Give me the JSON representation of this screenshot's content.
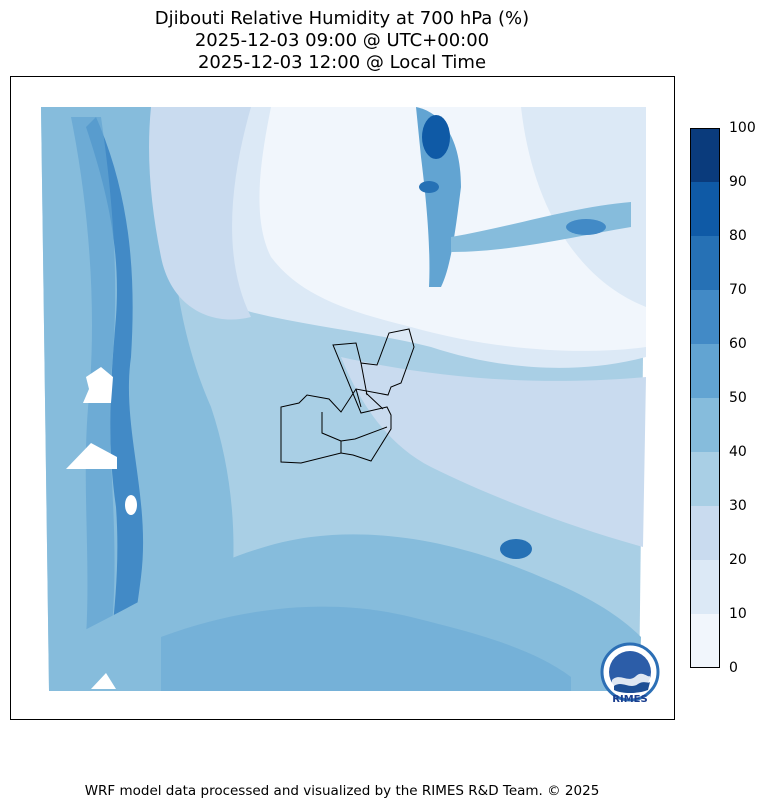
{
  "header": {
    "title_line1": "Djibouti Relative Humidity at 700 hPa (%)",
    "title_line2": "2025-12-03 09:00 @ UTC+00:00",
    "title_line3": "2025-12-03 12:00 @ Local Time"
  },
  "colorbar": {
    "ticks": [
      "0",
      "10",
      "20",
      "30",
      "40",
      "50",
      "60",
      "70",
      "80",
      "90",
      "100"
    ],
    "colors": [
      "#f1f6fc",
      "#dce9f6",
      "#c9dbef",
      "#a9cfe5",
      "#86bcdc",
      "#62a4d2",
      "#428ac6",
      "#2671b5",
      "#0f5aa6",
      "#0a3b7c"
    ]
  },
  "logo": {
    "text": "RIMES"
  },
  "footer": {
    "text": "WRF model data processed and visualized by the RIMES R&D Team. © 2025"
  }
}
